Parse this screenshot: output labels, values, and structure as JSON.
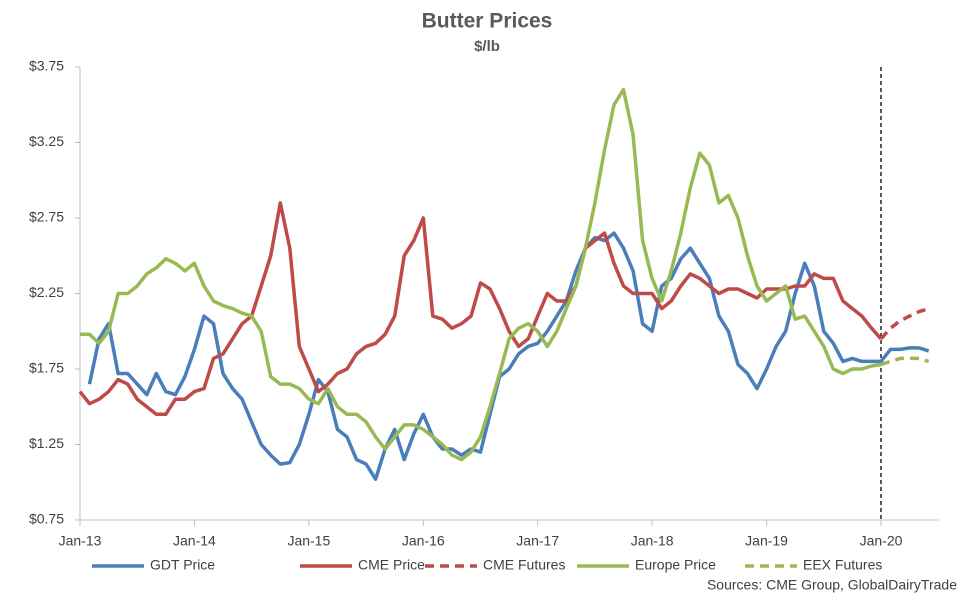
{
  "chart_data": {
    "type": "line",
    "title": "Butter Prices",
    "subtitle": "$/lb",
    "source": "Sources:  CME Group, GlobalDairyTrade",
    "categories": [
      "Jan-13",
      null,
      null,
      null,
      null,
      null,
      null,
      null,
      null,
      null,
      null,
      null,
      "Jan-14",
      null,
      null,
      null,
      null,
      null,
      null,
      null,
      null,
      null,
      null,
      null,
      "Jan-15",
      null,
      null,
      null,
      null,
      null,
      null,
      null,
      null,
      null,
      null,
      null,
      "Jan-16",
      null,
      null,
      null,
      null,
      null,
      null,
      null,
      null,
      null,
      null,
      null,
      "Jan-17",
      null,
      null,
      null,
      null,
      null,
      null,
      null,
      null,
      null,
      null,
      null,
      "Jan-18",
      null,
      null,
      null,
      null,
      null,
      null,
      null,
      null,
      null,
      null,
      null,
      "Jan-19",
      null,
      null,
      null,
      null,
      null,
      null,
      null,
      null,
      null,
      null,
      null,
      "Jan-20",
      null,
      null,
      null,
      null,
      null
    ],
    "ylim": [
      0.75,
      3.75
    ],
    "yticks": [
      {
        "value": 0.75,
        "label": "$0.75"
      },
      {
        "value": 1.25,
        "label": "$1.25"
      },
      {
        "value": 1.75,
        "label": "$1.75"
      },
      {
        "value": 2.25,
        "label": "$2.25"
      },
      {
        "value": 2.75,
        "label": "$2.75"
      },
      {
        "value": 3.25,
        "label": "$3.25"
      },
      {
        "value": 3.75,
        "label": "$3.75"
      }
    ],
    "grid": false,
    "legend": "bottom",
    "series": [
      {
        "name": "GDT Price",
        "color": "#4a7ebb",
        "dashed": false,
        "values": [
          null,
          1.65,
          1.95,
          2.05,
          1.72,
          1.72,
          1.65,
          1.58,
          1.72,
          1.6,
          1.58,
          1.7,
          1.88,
          2.1,
          2.05,
          1.72,
          1.62,
          1.55,
          1.4,
          1.25,
          1.18,
          1.12,
          1.13,
          1.25,
          1.45,
          1.68,
          1.6,
          1.35,
          1.3,
          1.15,
          1.12,
          1.02,
          1.22,
          1.35,
          1.15,
          1.32,
          1.45,
          1.3,
          1.22,
          1.22,
          1.18,
          1.22,
          1.2,
          1.45,
          1.7,
          1.75,
          1.85,
          1.9,
          1.92,
          2.0,
          2.1,
          2.2,
          2.4,
          2.55,
          2.62,
          2.6,
          2.65,
          2.55,
          2.4,
          2.05,
          2.0,
          2.3,
          2.35,
          2.48,
          2.55,
          2.45,
          2.35,
          2.1,
          2.0,
          1.78,
          1.72,
          1.62,
          1.75,
          1.9,
          2.0,
          2.25,
          2.45,
          2.3,
          2.0,
          1.92,
          1.8,
          1.82,
          1.8,
          1.8,
          1.8,
          1.88,
          1.88,
          1.89,
          1.89,
          1.87
        ]
      },
      {
        "name": "CME Price",
        "color": "#be4b48",
        "dashed": false,
        "values": [
          1.6,
          1.52,
          1.55,
          1.6,
          1.68,
          1.65,
          1.55,
          1.5,
          1.45,
          1.45,
          1.55,
          1.55,
          1.6,
          1.62,
          1.82,
          1.85,
          1.95,
          2.05,
          2.1,
          2.3,
          2.5,
          2.85,
          2.55,
          1.9,
          1.75,
          1.6,
          1.65,
          1.72,
          1.75,
          1.85,
          1.9,
          1.92,
          1.98,
          2.1,
          2.5,
          2.6,
          2.75,
          2.1,
          2.08,
          2.02,
          2.05,
          2.1,
          2.32,
          2.28,
          2.15,
          2.0,
          1.9,
          1.95,
          2.1,
          2.25,
          2.2,
          2.2,
          2.3,
          2.55,
          2.6,
          2.65,
          2.45,
          2.3,
          2.25,
          2.25,
          2.25,
          2.15,
          2.2,
          2.3,
          2.38,
          2.35,
          2.3,
          2.25,
          2.28,
          2.28,
          2.25,
          2.22,
          2.28,
          2.28,
          2.28,
          2.3,
          2.3,
          2.38,
          2.35,
          2.35,
          2.2,
          2.15,
          2.1,
          2.02,
          1.95,
          null,
          null,
          null,
          null,
          null
        ]
      },
      {
        "name": "CME Futures",
        "color": "#be4b48",
        "dashed": true,
        "values": [
          null,
          null,
          null,
          null,
          null,
          null,
          null,
          null,
          null,
          null,
          null,
          null,
          null,
          null,
          null,
          null,
          null,
          null,
          null,
          null,
          null,
          null,
          null,
          null,
          null,
          null,
          null,
          null,
          null,
          null,
          null,
          null,
          null,
          null,
          null,
          null,
          null,
          null,
          null,
          null,
          null,
          null,
          null,
          null,
          null,
          null,
          null,
          null,
          null,
          null,
          null,
          null,
          null,
          null,
          null,
          null,
          null,
          null,
          null,
          null,
          null,
          null,
          null,
          null,
          null,
          null,
          null,
          null,
          null,
          null,
          null,
          null,
          null,
          null,
          null,
          null,
          null,
          null,
          null,
          null,
          null,
          null,
          null,
          null,
          1.95,
          2.02,
          2.07,
          2.1,
          2.13,
          2.15
        ]
      },
      {
        "name": "Europe Price",
        "color": "#98b954",
        "dashed": false,
        "values": [
          1.98,
          1.98,
          1.92,
          2.0,
          2.25,
          2.25,
          2.3,
          2.38,
          2.42,
          2.48,
          2.45,
          2.4,
          2.45,
          2.3,
          2.2,
          2.17,
          2.15,
          2.12,
          2.1,
          2.0,
          1.7,
          1.65,
          1.65,
          1.62,
          1.55,
          1.52,
          1.62,
          1.5,
          1.45,
          1.45,
          1.4,
          1.3,
          1.22,
          1.3,
          1.38,
          1.38,
          1.35,
          1.3,
          1.25,
          1.18,
          1.15,
          1.2,
          1.3,
          1.5,
          1.72,
          1.95,
          2.02,
          2.05,
          2.0,
          1.9,
          2.0,
          2.15,
          2.3,
          2.55,
          2.85,
          3.2,
          3.5,
          3.6,
          3.3,
          2.6,
          2.35,
          2.2,
          2.4,
          2.65,
          2.95,
          3.18,
          3.1,
          2.85,
          2.9,
          2.75,
          2.5,
          2.3,
          2.2,
          2.25,
          2.3,
          2.08,
          2.1,
          2.0,
          1.9,
          1.75,
          1.72,
          1.75,
          1.75,
          1.77,
          1.78,
          null,
          null,
          null,
          null,
          null
        ]
      },
      {
        "name": "EEX Futures",
        "color": "#98b954",
        "dashed": true,
        "values": [
          null,
          null,
          null,
          null,
          null,
          null,
          null,
          null,
          null,
          null,
          null,
          null,
          null,
          null,
          null,
          null,
          null,
          null,
          null,
          null,
          null,
          null,
          null,
          null,
          null,
          null,
          null,
          null,
          null,
          null,
          null,
          null,
          null,
          null,
          null,
          null,
          null,
          null,
          null,
          null,
          null,
          null,
          null,
          null,
          null,
          null,
          null,
          null,
          null,
          null,
          null,
          null,
          null,
          null,
          null,
          null,
          null,
          null,
          null,
          null,
          null,
          null,
          null,
          null,
          null,
          null,
          null,
          null,
          null,
          null,
          null,
          null,
          null,
          null,
          null,
          null,
          null,
          null,
          null,
          null,
          null,
          null,
          null,
          null,
          1.78,
          1.8,
          1.82,
          1.82,
          1.82,
          1.8
        ]
      }
    ]
  }
}
